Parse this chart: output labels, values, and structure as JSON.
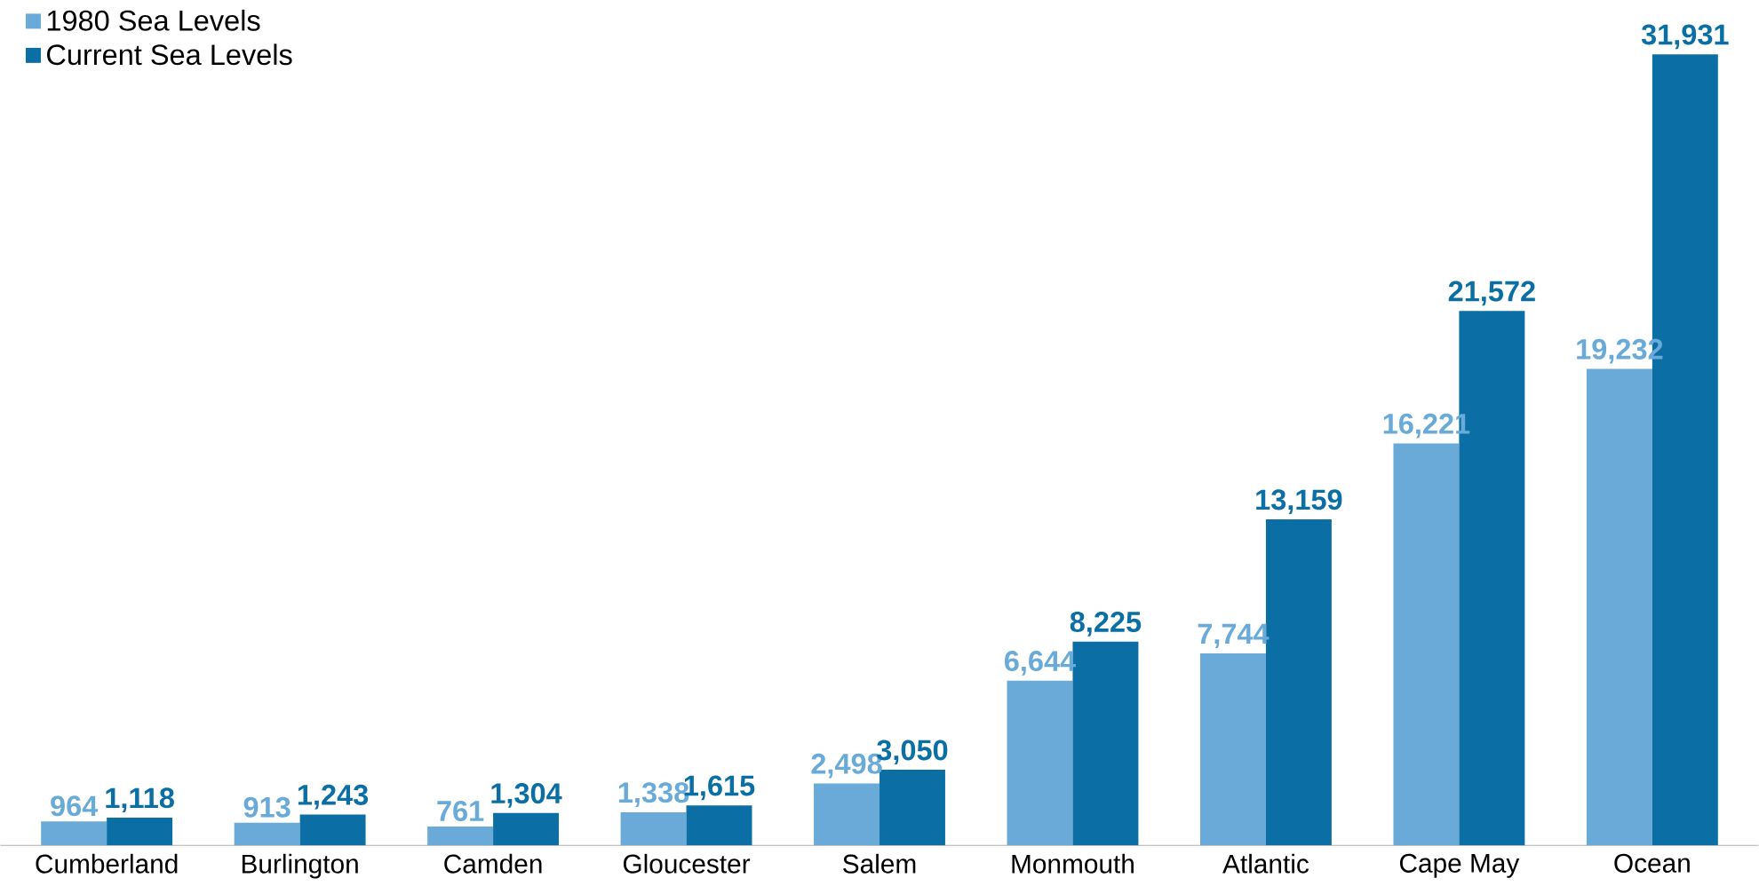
{
  "chart_data": {
    "type": "bar",
    "categories": [
      "Cumberland",
      "Burlington",
      "Camden",
      "Gloucester",
      "Salem",
      "Monmouth",
      "Atlantic",
      "Cape May",
      "Ocean"
    ],
    "series": [
      {
        "name": "1980 Sea Levels",
        "color": "#6aaad9",
        "values": [
          964,
          913,
          761,
          1338,
          2498,
          6644,
          7744,
          16221,
          19232
        ],
        "value_labels": [
          "964",
          "913",
          "761",
          "1,338",
          "2,498",
          "6,644",
          "7,744",
          "16,221",
          "19,232"
        ]
      },
      {
        "name": "Current Sea Levels",
        "color": "#0b6fa6",
        "values": [
          1118,
          1243,
          1304,
          1615,
          3050,
          8225,
          13159,
          21572,
          31931
        ],
        "value_labels": [
          "1,118",
          "1,243",
          "1,304",
          "1,615",
          "3,050",
          "8,225",
          "13,159",
          "21,572",
          "31,931"
        ]
      }
    ],
    "legend": "top left"
  }
}
